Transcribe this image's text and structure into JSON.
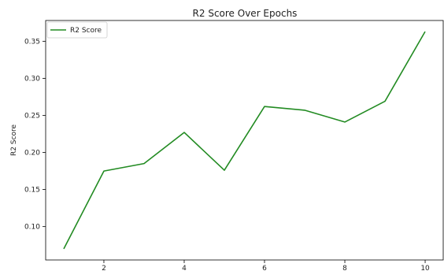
{
  "chart_data": {
    "type": "line",
    "title": "R2 Score Over Epochs",
    "xlabel": "",
    "ylabel": "R2 Score",
    "x": [
      1,
      2,
      3,
      4,
      5,
      6,
      7,
      8,
      9,
      10
    ],
    "series": [
      {
        "name": "R2 Score",
        "color": "#228b22",
        "values": [
          0.07,
          0.175,
          0.185,
          0.227,
          0.176,
          0.262,
          0.257,
          0.241,
          0.269,
          0.363
        ]
      }
    ],
    "xticks": [
      2,
      4,
      6,
      8,
      10
    ],
    "yticks": [
      0.1,
      0.15,
      0.2,
      0.25,
      0.3,
      0.35
    ],
    "ytick_labels": [
      "0.10",
      "0.15",
      "0.20",
      "0.25",
      "0.30",
      "0.35"
    ],
    "xlim": [
      0.55,
      10.45
    ],
    "ylim": [
      0.055,
      0.378
    ],
    "grid": false,
    "legend": "top-left"
  }
}
